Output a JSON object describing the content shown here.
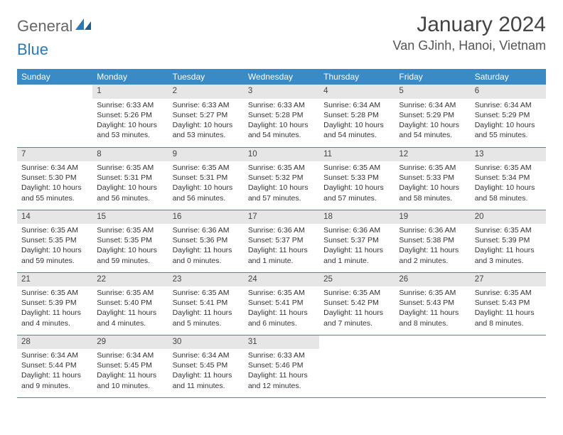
{
  "logo": {
    "general": "General",
    "blue": "Blue"
  },
  "header": {
    "month_title": "January 2024",
    "location": "Van GJinh, Hanoi, Vietnam"
  },
  "colors": {
    "header_bg": "#3a8ac6",
    "header_fg": "#ffffff",
    "daynum_bg": "#e6e6e6",
    "row_sep": "#3a8ac6",
    "logo_general": "#666666",
    "logo_blue": "#2a7ab9",
    "title_fg": "#444444",
    "body_fg": "#333333"
  },
  "weekdays": [
    "Sunday",
    "Monday",
    "Tuesday",
    "Wednesday",
    "Thursday",
    "Friday",
    "Saturday"
  ],
  "weeks": [
    [
      null,
      {
        "n": "1",
        "sr": "Sunrise: 6:33 AM",
        "ss": "Sunset: 5:26 PM",
        "dl": "Daylight: 10 hours and 53 minutes."
      },
      {
        "n": "2",
        "sr": "Sunrise: 6:33 AM",
        "ss": "Sunset: 5:27 PM",
        "dl": "Daylight: 10 hours and 53 minutes."
      },
      {
        "n": "3",
        "sr": "Sunrise: 6:33 AM",
        "ss": "Sunset: 5:28 PM",
        "dl": "Daylight: 10 hours and 54 minutes."
      },
      {
        "n": "4",
        "sr": "Sunrise: 6:34 AM",
        "ss": "Sunset: 5:28 PM",
        "dl": "Daylight: 10 hours and 54 minutes."
      },
      {
        "n": "5",
        "sr": "Sunrise: 6:34 AM",
        "ss": "Sunset: 5:29 PM",
        "dl": "Daylight: 10 hours and 54 minutes."
      },
      {
        "n": "6",
        "sr": "Sunrise: 6:34 AM",
        "ss": "Sunset: 5:29 PM",
        "dl": "Daylight: 10 hours and 55 minutes."
      }
    ],
    [
      {
        "n": "7",
        "sr": "Sunrise: 6:34 AM",
        "ss": "Sunset: 5:30 PM",
        "dl": "Daylight: 10 hours and 55 minutes."
      },
      {
        "n": "8",
        "sr": "Sunrise: 6:35 AM",
        "ss": "Sunset: 5:31 PM",
        "dl": "Daylight: 10 hours and 56 minutes."
      },
      {
        "n": "9",
        "sr": "Sunrise: 6:35 AM",
        "ss": "Sunset: 5:31 PM",
        "dl": "Daylight: 10 hours and 56 minutes."
      },
      {
        "n": "10",
        "sr": "Sunrise: 6:35 AM",
        "ss": "Sunset: 5:32 PM",
        "dl": "Daylight: 10 hours and 57 minutes."
      },
      {
        "n": "11",
        "sr": "Sunrise: 6:35 AM",
        "ss": "Sunset: 5:33 PM",
        "dl": "Daylight: 10 hours and 57 minutes."
      },
      {
        "n": "12",
        "sr": "Sunrise: 6:35 AM",
        "ss": "Sunset: 5:33 PM",
        "dl": "Daylight: 10 hours and 58 minutes."
      },
      {
        "n": "13",
        "sr": "Sunrise: 6:35 AM",
        "ss": "Sunset: 5:34 PM",
        "dl": "Daylight: 10 hours and 58 minutes."
      }
    ],
    [
      {
        "n": "14",
        "sr": "Sunrise: 6:35 AM",
        "ss": "Sunset: 5:35 PM",
        "dl": "Daylight: 10 hours and 59 minutes."
      },
      {
        "n": "15",
        "sr": "Sunrise: 6:35 AM",
        "ss": "Sunset: 5:35 PM",
        "dl": "Daylight: 10 hours and 59 minutes."
      },
      {
        "n": "16",
        "sr": "Sunrise: 6:36 AM",
        "ss": "Sunset: 5:36 PM",
        "dl": "Daylight: 11 hours and 0 minutes."
      },
      {
        "n": "17",
        "sr": "Sunrise: 6:36 AM",
        "ss": "Sunset: 5:37 PM",
        "dl": "Daylight: 11 hours and 1 minute."
      },
      {
        "n": "18",
        "sr": "Sunrise: 6:36 AM",
        "ss": "Sunset: 5:37 PM",
        "dl": "Daylight: 11 hours and 1 minute."
      },
      {
        "n": "19",
        "sr": "Sunrise: 6:36 AM",
        "ss": "Sunset: 5:38 PM",
        "dl": "Daylight: 11 hours and 2 minutes."
      },
      {
        "n": "20",
        "sr": "Sunrise: 6:35 AM",
        "ss": "Sunset: 5:39 PM",
        "dl": "Daylight: 11 hours and 3 minutes."
      }
    ],
    [
      {
        "n": "21",
        "sr": "Sunrise: 6:35 AM",
        "ss": "Sunset: 5:39 PM",
        "dl": "Daylight: 11 hours and 4 minutes."
      },
      {
        "n": "22",
        "sr": "Sunrise: 6:35 AM",
        "ss": "Sunset: 5:40 PM",
        "dl": "Daylight: 11 hours and 4 minutes."
      },
      {
        "n": "23",
        "sr": "Sunrise: 6:35 AM",
        "ss": "Sunset: 5:41 PM",
        "dl": "Daylight: 11 hours and 5 minutes."
      },
      {
        "n": "24",
        "sr": "Sunrise: 6:35 AM",
        "ss": "Sunset: 5:41 PM",
        "dl": "Daylight: 11 hours and 6 minutes."
      },
      {
        "n": "25",
        "sr": "Sunrise: 6:35 AM",
        "ss": "Sunset: 5:42 PM",
        "dl": "Daylight: 11 hours and 7 minutes."
      },
      {
        "n": "26",
        "sr": "Sunrise: 6:35 AM",
        "ss": "Sunset: 5:43 PM",
        "dl": "Daylight: 11 hours and 8 minutes."
      },
      {
        "n": "27",
        "sr": "Sunrise: 6:35 AM",
        "ss": "Sunset: 5:43 PM",
        "dl": "Daylight: 11 hours and 8 minutes."
      }
    ],
    [
      {
        "n": "28",
        "sr": "Sunrise: 6:34 AM",
        "ss": "Sunset: 5:44 PM",
        "dl": "Daylight: 11 hours and 9 minutes."
      },
      {
        "n": "29",
        "sr": "Sunrise: 6:34 AM",
        "ss": "Sunset: 5:45 PM",
        "dl": "Daylight: 11 hours and 10 minutes."
      },
      {
        "n": "30",
        "sr": "Sunrise: 6:34 AM",
        "ss": "Sunset: 5:45 PM",
        "dl": "Daylight: 11 hours and 11 minutes."
      },
      {
        "n": "31",
        "sr": "Sunrise: 6:33 AM",
        "ss": "Sunset: 5:46 PM",
        "dl": "Daylight: 11 hours and 12 minutes."
      },
      null,
      null,
      null
    ]
  ]
}
